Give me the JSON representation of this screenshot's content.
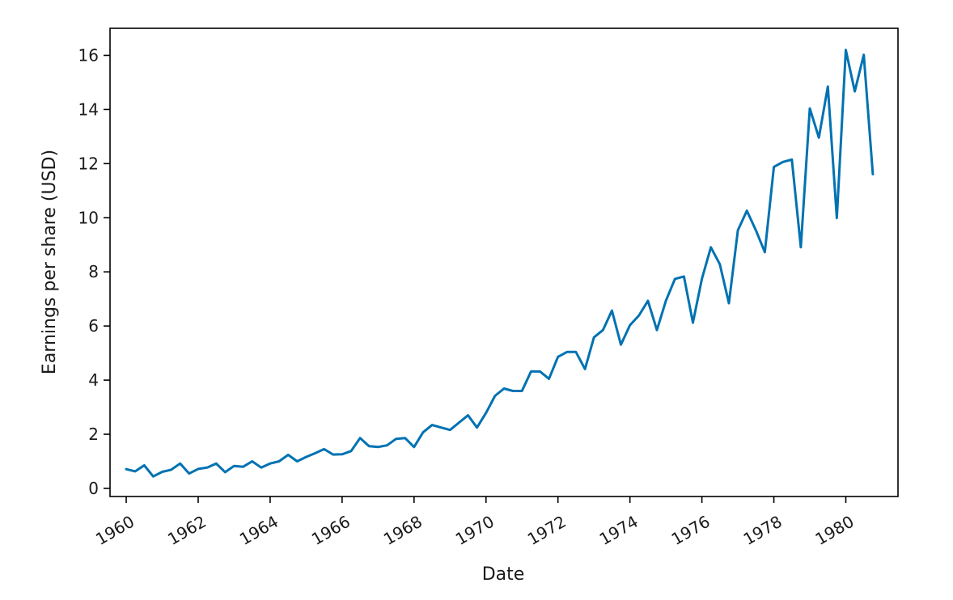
{
  "chart_data": {
    "type": "line",
    "title": "",
    "xlabel": "Date",
    "ylabel": "Earnings per share (USD)",
    "xlim": [
      1959.55,
      1981.45
    ],
    "ylim": [
      -0.3,
      17.0
    ],
    "grid": false,
    "x_ticks": [
      1960,
      1962,
      1964,
      1966,
      1968,
      1970,
      1972,
      1974,
      1976,
      1978,
      1980
    ],
    "x_tick_labels": [
      "1960",
      "1962",
      "1964",
      "1966",
      "1968",
      "1970",
      "1972",
      "1974",
      "1976",
      "1978",
      "1980"
    ],
    "y_ticks": [
      0,
      2,
      4,
      6,
      8,
      10,
      12,
      14,
      16
    ],
    "y_tick_labels": [
      "0",
      "2",
      "4",
      "6",
      "8",
      "10",
      "12",
      "14",
      "16"
    ],
    "series": [
      {
        "name": "Earnings per share",
        "color": "#0072B2",
        "x": [
          1960.0,
          1960.25,
          1960.5,
          1960.75,
          1961.0,
          1961.25,
          1961.5,
          1961.75,
          1962.0,
          1962.25,
          1962.5,
          1962.75,
          1963.0,
          1963.25,
          1963.5,
          1963.75,
          1964.0,
          1964.25,
          1964.5,
          1964.75,
          1965.0,
          1965.25,
          1965.5,
          1965.75,
          1966.0,
          1966.25,
          1966.5,
          1966.75,
          1967.0,
          1967.25,
          1967.5,
          1967.75,
          1968.0,
          1968.25,
          1968.5,
          1968.75,
          1969.0,
          1969.25,
          1969.5,
          1969.75,
          1970.0,
          1970.25,
          1970.5,
          1970.75,
          1971.0,
          1971.25,
          1971.5,
          1971.75,
          1972.0,
          1972.25,
          1972.5,
          1972.75,
          1973.0,
          1973.25,
          1973.5,
          1973.75,
          1974.0,
          1974.25,
          1974.5,
          1974.75,
          1975.0,
          1975.25,
          1975.5,
          1975.75,
          1976.0,
          1976.25,
          1976.5,
          1976.75,
          1977.0,
          1977.25,
          1977.5,
          1977.75,
          1978.0,
          1978.25,
          1978.5,
          1978.75,
          1979.0,
          1979.25,
          1979.5,
          1979.75,
          1980.0,
          1980.25,
          1980.5,
          1980.75
        ],
        "y": [
          0.71,
          0.63,
          0.85,
          0.44,
          0.61,
          0.69,
          0.92,
          0.55,
          0.72,
          0.77,
          0.92,
          0.6,
          0.83,
          0.8,
          1.0,
          0.77,
          0.92,
          1.0,
          1.24,
          1.0,
          1.16,
          1.3,
          1.45,
          1.25,
          1.26,
          1.38,
          1.86,
          1.56,
          1.53,
          1.59,
          1.83,
          1.86,
          1.53,
          2.07,
          2.34,
          2.25,
          2.16,
          2.43,
          2.7,
          2.25,
          2.79,
          3.42,
          3.69,
          3.6,
          3.6,
          4.32,
          4.32,
          4.05,
          4.86,
          5.04,
          5.04,
          4.41,
          5.58,
          5.85,
          6.57,
          5.31,
          6.03,
          6.39,
          6.93,
          5.85,
          6.93,
          7.74,
          7.83,
          6.12,
          7.74,
          8.91,
          8.28,
          6.84,
          9.54,
          10.26,
          9.54,
          8.73,
          11.88,
          12.06,
          12.15,
          8.91,
          14.04,
          12.96,
          14.85,
          9.99,
          16.2,
          14.67,
          16.02,
          11.61
        ]
      }
    ]
  }
}
